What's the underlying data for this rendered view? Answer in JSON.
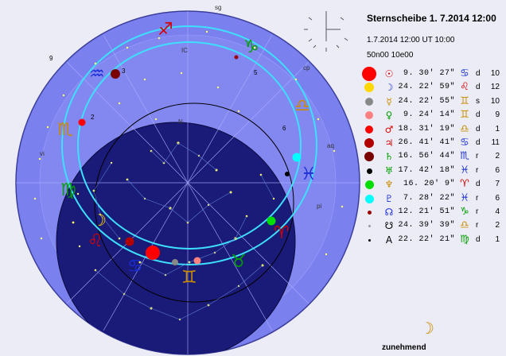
{
  "header": {
    "title": "Sternscheibe  1. 7.2014 12:00",
    "datetime_line": "1.7.2014 12:00 UT 10:00",
    "location_line": "50n00 10e00"
  },
  "ephemeris": [
    {
      "name": "sun",
      "symbol": "☉",
      "value": "9. 30' 27\"",
      "sign": "♋",
      "dir": "d",
      "house": "10",
      "dot_color": "#ff0000",
      "dot_size": 18,
      "sym_color": "#d40000",
      "sign_color": "#1b2fd8"
    },
    {
      "name": "moon",
      "symbol": "☽",
      "value": "24. 22' 59\"",
      "sign": "♌",
      "dir": "d",
      "house": "12",
      "dot_color": "#ffd700",
      "dot_size": 12,
      "sym_color": "#1b2fd8",
      "sign_color": "#d40000"
    },
    {
      "name": "mercury",
      "symbol": "☿",
      "value": "24. 22' 55\"",
      "sign": "♊",
      "dir": "s",
      "house": "10",
      "dot_color": "#888888",
      "dot_size": 10,
      "sym_color": "#c98b00",
      "sign_color": "#c98b00"
    },
    {
      "name": "venus",
      "symbol": "♀",
      "value": "9. 24' 14\"",
      "sign": "♊",
      "dir": "d",
      "house": "9",
      "dot_color": "#ff8080",
      "dot_size": 10,
      "sym_color": "#00a000",
      "sign_color": "#c98b00"
    },
    {
      "name": "mars",
      "symbol": "♂",
      "value": "18. 31' 19\"",
      "sign": "♎",
      "dir": "d",
      "house": "1",
      "dot_color": "#ff0000",
      "dot_size": 10,
      "sym_color": "#d40000",
      "sign_color": "#c98b00"
    },
    {
      "name": "jupiter",
      "symbol": "♃",
      "value": "26. 41' 41\"",
      "sign": "♋",
      "dir": "d",
      "house": "11",
      "dot_color": "#b00000",
      "dot_size": 12,
      "sym_color": "#d40000",
      "sign_color": "#1b2fd8"
    },
    {
      "name": "saturn",
      "symbol": "♄",
      "value": "16. 56' 44\"",
      "sign": "♏",
      "dir": "r",
      "house": "2",
      "dot_color": "#7a0000",
      "dot_size": 12,
      "sym_color": "#00a000",
      "sign_color": "#1b2fd8"
    },
    {
      "name": "uranus",
      "symbol": "♅",
      "value": "17. 42' 18\"",
      "sign": "♓",
      "dir": "r",
      "house": "6",
      "dot_color": "#000000",
      "dot_size": 7,
      "sym_color": "#00a000",
      "sign_color": "#1b2fd8"
    },
    {
      "name": "neptune",
      "symbol": "♆",
      "value": "16. 20' 9\"",
      "sign": "♈",
      "dir": "d",
      "house": "7",
      "dot_color": "#00dd00",
      "dot_size": 11,
      "sym_color": "#c98b00",
      "sign_color": "#d40000"
    },
    {
      "name": "pluto",
      "symbol": "♇",
      "value": "7. 28' 22\"",
      "sign": "♓",
      "dir": "r",
      "house": "6",
      "dot_color": "#00ffff",
      "dot_size": 11,
      "sym_color": "#1b2fd8",
      "sign_color": "#1b2fd8"
    },
    {
      "name": "node",
      "symbol": "☊",
      "value": "12. 21' 51\"",
      "sign": "♑",
      "dir": "r",
      "house": "4",
      "dot_color": "#990000",
      "dot_size": 5,
      "sym_color": "#1b2fd8",
      "sign_color": "#00a000"
    },
    {
      "name": "lilith",
      "symbol": "☋",
      "value": "24. 39' 39\"",
      "sign": "♎",
      "dir": "r",
      "house": "2",
      "dot_color": "#999999",
      "dot_size": 3,
      "sym_color": "#000000",
      "sign_color": "#c98b00"
    },
    {
      "name": "ascendant",
      "symbol": "A",
      "value": "22. 22' 21\"",
      "sign": "♍",
      "dir": "d",
      "house": "1",
      "dot_color": "#000000",
      "dot_size": 3,
      "sym_color": "#000000",
      "sign_color": "#00a000"
    }
  ],
  "chart_labels": {
    "house_numbers": [
      "1",
      "2",
      "3",
      "4",
      "5",
      "6",
      "7",
      "8",
      "9",
      "10",
      "11",
      "12"
    ],
    "house_codes": [
      "sg",
      "cp",
      "aq",
      "pi",
      "vi",
      "le",
      "IC",
      "N"
    ]
  },
  "moon_phase": {
    "symbol": "☽",
    "label": "zunehmend"
  },
  "colors": {
    "background": "#ececf6",
    "outer_disk": "#7a7ef0",
    "horizon_disk": "#1a1a78",
    "ecliptic_ring": "#3ee0ff",
    "stars": "#ffff66"
  }
}
